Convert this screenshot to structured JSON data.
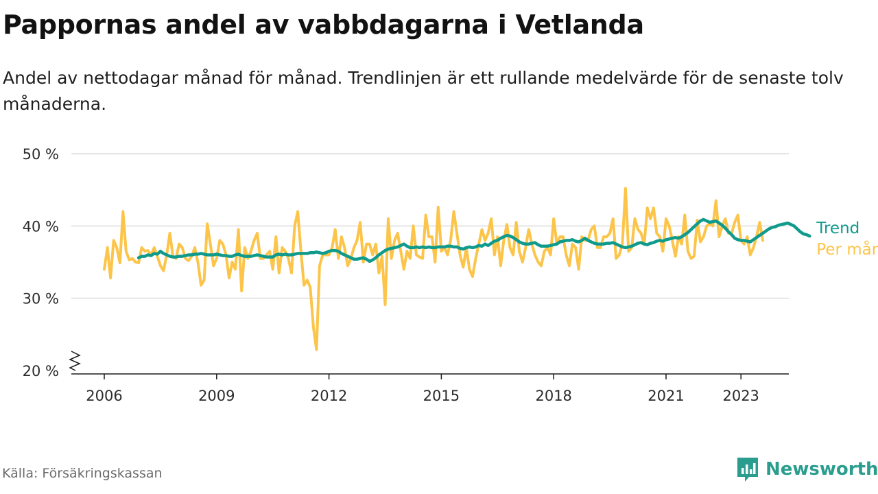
{
  "header": {
    "title": "Pappornas andel av vabbdagarna i Vetlanda",
    "subtitle": "Andel av nettodagar månad för månad. Trendlinjen är ett rullande medelvärde för de senaste tolv månaderna."
  },
  "footer": {
    "source": "Källa: Försäkringskassan",
    "brand": "Newsworthy"
  },
  "colors": {
    "monthly": "#fcc54a",
    "trend": "#109a8c",
    "grid": "#dcdcdc",
    "axis": "#1a1a1a",
    "brand": "#2a9d8f"
  },
  "chart_data": {
    "type": "line",
    "title": "Pappornas andel av vabbdagarna i Vetlanda",
    "xlabel": "",
    "ylabel": "",
    "ylim": [
      20,
      50
    ],
    "y_ticks": [
      {
        "value": 20,
        "label": "20 %"
      },
      {
        "value": 30,
        "label": "30 %"
      },
      {
        "value": 40,
        "label": "40 %"
      },
      {
        "value": 50,
        "label": "50 %"
      }
    ],
    "x_ticks": [
      "2006",
      "2009",
      "2012",
      "2015",
      "2018",
      "2021",
      "2023"
    ],
    "x_start": "2006-01",
    "grid": true,
    "legend": "inline labels at right end of series",
    "series": [
      {
        "name": "Per månad",
        "values": [
          34,
          37,
          32.8,
          38,
          37,
          34.9,
          42,
          36.5,
          35.3,
          35.5,
          35,
          34.9,
          37,
          36.5,
          36.6,
          36,
          37,
          35.8,
          34.5,
          33.8,
          36,
          39,
          35.8,
          35.5,
          37.5,
          37,
          35.5,
          35.2,
          35.8,
          37,
          35,
          31.8,
          32.5,
          40.3,
          37.5,
          34.5,
          35.5,
          38,
          37.5,
          36,
          32.8,
          35,
          34,
          39.5,
          31,
          37,
          35.5,
          36.5,
          38,
          39,
          35.5,
          35.5,
          36,
          36.5,
          34,
          38.5,
          33.5,
          37,
          36.5,
          35.5,
          33.5,
          40,
          42,
          36.5,
          31.8,
          32.5,
          31.5,
          26,
          22.9,
          34.5,
          36,
          36,
          36,
          37,
          39.5,
          35.5,
          38.5,
          37,
          34.5,
          35.5,
          37,
          38,
          40.5,
          35,
          37.5,
          37.5,
          36,
          37.5,
          33.5,
          35.8,
          29.1,
          41,
          35.5,
          38,
          39,
          36.5,
          34,
          36.5,
          35.5,
          40,
          36,
          35.7,
          35.5,
          41.5,
          38.5,
          38.5,
          35,
          42.6,
          36.5,
          37,
          36,
          38,
          42,
          39,
          36,
          34.3,
          37,
          34,
          33,
          35.5,
          37.5,
          39.5,
          38,
          39,
          41,
          36,
          38.5,
          34.5,
          38,
          40.2,
          37,
          36,
          40.5,
          36.5,
          35,
          37,
          39.5,
          37.5,
          36,
          35,
          34.5,
          36.5,
          37,
          36,
          41,
          37.5,
          38.5,
          38.5,
          36,
          34.5,
          37.5,
          37,
          34,
          38.5,
          38,
          38,
          39.5,
          40,
          37,
          37,
          38.5,
          38.5,
          39,
          41,
          35.5,
          36,
          37.5,
          45.2,
          36.5,
          37,
          41,
          39.5,
          39,
          37.5,
          42.5,
          41,
          42.5,
          39,
          38.5,
          36.5,
          41,
          40,
          38,
          35.8,
          38.5,
          37.5,
          41.5,
          36.5,
          35.5,
          35.8,
          40.8,
          37.8,
          38.5,
          40,
          40.3,
          40,
          43.5,
          38.5,
          40,
          41,
          39,
          39,
          40.5,
          41.5,
          38,
          37.5,
          38.5,
          36,
          37,
          38.5,
          40.5,
          38
        ]
      },
      {
        "name": "Trend",
        "offset_months": 11,
        "values": [
          35.6,
          35.8,
          35.8,
          36,
          35.9,
          36.2,
          36.1,
          36.5,
          36.2,
          36.0,
          35.8,
          35.7,
          35.7,
          35.8,
          35.8,
          35.9,
          36.0,
          36.0,
          36.1,
          36.1,
          36.2,
          36.1,
          36.0,
          36.0,
          36.0,
          36.1,
          36.0,
          35.9,
          35.9,
          35.8,
          35.8,
          36.0,
          36.1,
          35.9,
          35.8,
          35.8,
          35.8,
          35.9,
          36.0,
          35.9,
          35.8,
          35.7,
          35.7,
          35.7,
          36.0,
          36.1,
          36.0,
          36.1,
          36.0,
          36.0,
          36.1,
          36.2,
          36.2,
          36.2,
          36.2,
          36.3,
          36.3,
          36.4,
          36.3,
          36.2,
          36.3,
          36.5,
          36.6,
          36.6,
          36.5,
          36.2,
          36.0,
          35.8,
          35.6,
          35.4,
          35.4,
          35.5,
          35.6,
          35.4,
          35.1,
          35.3,
          35.6,
          36.0,
          36.3,
          36.6,
          36.8,
          36.9,
          37.0,
          37.1,
          37.3,
          37.5,
          37.2,
          37.0,
          37.0,
          37.1,
          37.0,
          37.1,
          37.0,
          37.1,
          37.0,
          37.0,
          37.1,
          37.1,
          37.1,
          37.2,
          37.2,
          37.1,
          37.1,
          36.9,
          36.8,
          37.0,
          37.1,
          37.0,
          37.1,
          37.3,
          37.2,
          37.5,
          37.3,
          37.6,
          37.9,
          38.0,
          38.3,
          38.5,
          38.7,
          38.6,
          38.4,
          38.1,
          37.8,
          37.6,
          37.5,
          37.5,
          37.6,
          37.7,
          37.4,
          37.2,
          37.2,
          37.2,
          37.3,
          37.4,
          37.5,
          37.8,
          37.9,
          38.0,
          38.0,
          38.1,
          37.9,
          37.8,
          38.0,
          38.3,
          38.0,
          37.8,
          37.6,
          37.5,
          37.5,
          37.5,
          37.6,
          37.6,
          37.7,
          37.5,
          37.3,
          37.1,
          37.0,
          37.1,
          37.2,
          37.4,
          37.6,
          37.7,
          37.5,
          37.4,
          37.6,
          37.7,
          37.9,
          38.0,
          37.9,
          38.1,
          38.2,
          38.3,
          38.4,
          38.3,
          38.5,
          38.8,
          39.1,
          39.5,
          39.9,
          40.3,
          40.7,
          40.9,
          40.7,
          40.5,
          40.6,
          40.7,
          40.4,
          40.1,
          39.7,
          39.2,
          38.8,
          38.3,
          38.1,
          38.0,
          38.0,
          37.9,
          37.8,
          38.1,
          38.4,
          38.7,
          39.0,
          39.3,
          39.6,
          39.8,
          39.9,
          40.1,
          40.2,
          40.3,
          40.4,
          40.2,
          40.0,
          39.6,
          39.2,
          38.9,
          38.8,
          38.6
        ]
      }
    ]
  }
}
